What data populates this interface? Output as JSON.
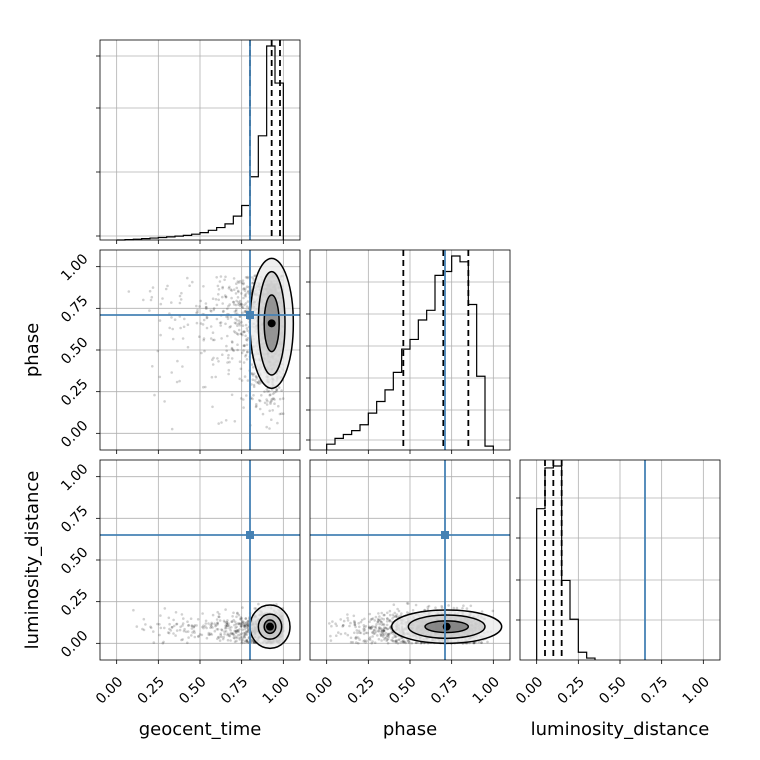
{
  "chart_data": {
    "type": "corner",
    "parameters": [
      "geocent_time",
      "phase",
      "luminosity_distance"
    ],
    "axis_ticks": [
      "0.00",
      "0.25",
      "0.50",
      "0.75",
      "1.00"
    ],
    "axis_range": [
      -0.1,
      1.1
    ],
    "grid": true,
    "truth_color": "#4682b4",
    "truths": {
      "geocent_time": 0.8,
      "phase": 0.71,
      "luminosity_distance": 0.65
    },
    "histograms": [
      {
        "param": "geocent_time",
        "bin_edges": [
          0.0,
          0.05,
          0.1,
          0.15,
          0.2,
          0.25,
          0.3,
          0.35,
          0.4,
          0.45,
          0.5,
          0.55,
          0.6,
          0.65,
          0.7,
          0.75,
          0.8,
          0.85,
          0.9,
          0.95,
          1.0
        ],
        "counts": [
          0.0,
          0.002,
          0.004,
          0.007,
          0.01,
          0.013,
          0.016,
          0.02,
          0.024,
          0.03,
          0.038,
          0.05,
          0.064,
          0.083,
          0.123,
          0.178,
          0.326,
          0.537,
          1.0,
          0.809
        ],
        "quantiles": [
          0.8,
          0.93,
          0.98
        ]
      },
      {
        "param": "phase",
        "bin_edges": [
          0.0,
          0.05,
          0.1,
          0.15,
          0.2,
          0.25,
          0.3,
          0.35,
          0.4,
          0.45,
          0.5,
          0.55,
          0.6,
          0.65,
          0.7,
          0.75,
          0.8,
          0.85,
          0.9,
          0.95,
          1.0
        ],
        "counts": [
          0.03,
          0.06,
          0.08,
          0.1,
          0.13,
          0.19,
          0.25,
          0.31,
          0.4,
          0.52,
          0.57,
          0.67,
          0.72,
          0.9,
          0.92,
          1.0,
          0.97,
          0.75,
          0.38,
          0.02
        ],
        "quantiles": [
          0.46,
          0.7,
          0.85
        ]
      },
      {
        "param": "luminosity_distance",
        "bin_edges": [
          0.0,
          0.05,
          0.1,
          0.15,
          0.2,
          0.25,
          0.3,
          0.35
        ],
        "counts": [
          0.78,
          0.99,
          1.0,
          0.41,
          0.21,
          0.04,
          0.01
        ],
        "quantiles": [
          0.05,
          0.1,
          0.15
        ]
      }
    ]
  }
}
